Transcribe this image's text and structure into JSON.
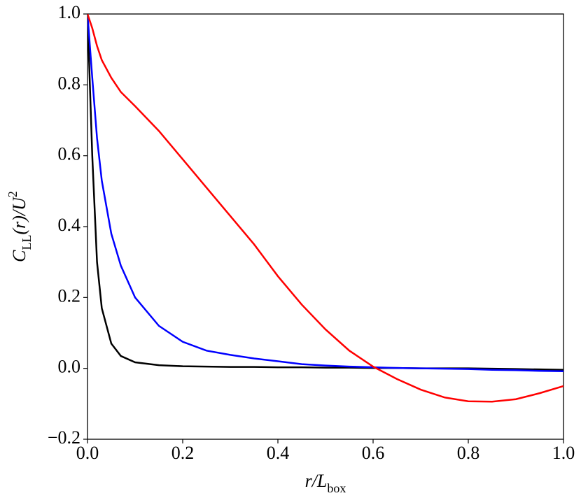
{
  "chart_data": {
    "type": "line",
    "xlabel": [
      {
        "text": "r/L"
      },
      {
        "text": "box",
        "shift": "sub"
      }
    ],
    "ylabel": [
      {
        "text": "C"
      },
      {
        "text": "LL",
        "shift": "sub"
      },
      {
        "text": "(r)/U"
      },
      {
        "text": "2",
        "shift": "super"
      }
    ],
    "x": [
      0,
      0.01,
      0.02,
      0.03,
      0.05,
      0.07,
      0.1,
      0.15,
      0.2,
      0.25,
      0.3,
      0.35,
      0.4,
      0.45,
      0.5,
      0.55,
      0.6,
      0.65,
      0.7,
      0.75,
      0.8,
      0.85,
      0.9,
      0.95,
      1.0
    ],
    "series": [
      {
        "color": "#000000",
        "values": [
          1.0,
          0.6,
          0.3,
          0.17,
          0.07,
          0.035,
          0.017,
          0.009,
          0.006,
          0.005,
          0.004,
          0.004,
          0.003,
          0.003,
          0.002,
          0.002,
          0.001,
          0.001,
          0,
          0,
          0,
          -0.001,
          -0.002,
          -0.003,
          -0.004
        ]
      },
      {
        "color": "#0000ff",
        "values": [
          1.0,
          0.82,
          0.65,
          0.53,
          0.38,
          0.29,
          0.2,
          0.12,
          0.075,
          0.05,
          0.038,
          0.028,
          0.02,
          0.012,
          0.008,
          0.005,
          0.003,
          0.001,
          0,
          -0.001,
          -0.002,
          -0.004,
          -0.005,
          -0.007,
          -0.008
        ]
      },
      {
        "color": "#ff0000",
        "values": [
          1.0,
          0.96,
          0.91,
          0.87,
          0.82,
          0.78,
          0.74,
          0.67,
          0.59,
          0.51,
          0.43,
          0.35,
          0.26,
          0.18,
          0.11,
          0.05,
          0.005,
          -0.03,
          -0.06,
          -0.082,
          -0.093,
          -0.094,
          -0.087,
          -0.07,
          -0.05
        ]
      }
    ],
    "xlim": [
      0,
      1.0
    ],
    "xticks": [
      {
        "value": 0,
        "label": "0.0"
      },
      0.2,
      0.4,
      0.6,
      0.8,
      {
        "value": 1.0,
        "label": "1.0"
      }
    ],
    "ylim": [
      -0.2,
      1.0
    ],
    "yticks": [
      {
        "value": -0.2,
        "label": "−0.2"
      },
      {
        "value": 0,
        "label": "0.0"
      },
      0.2,
      0.4,
      0.6,
      0.8,
      {
        "value": 1.0,
        "label": "1.0"
      }
    ],
    "grid": false
  }
}
